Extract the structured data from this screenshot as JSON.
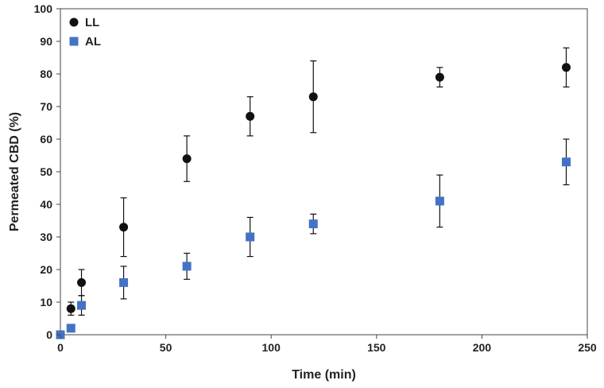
{
  "chart_data": {
    "type": "scatter",
    "title": "",
    "xlabel": "Time (min)",
    "ylabel": "Permeated CBD (%)",
    "xlim": [
      0,
      250
    ],
    "ylim": [
      0,
      100
    ],
    "xticks": [
      0,
      50,
      100,
      150,
      200,
      250
    ],
    "yticks": [
      0,
      10,
      20,
      30,
      40,
      50,
      60,
      70,
      80,
      90,
      100
    ],
    "grid": false,
    "legend_position": "top-left",
    "error_bars": true,
    "series": [
      {
        "name": "LL",
        "marker": "circle",
        "color": "#111111",
        "points": [
          {
            "x": 0,
            "y": 0,
            "err": 0
          },
          {
            "x": 5,
            "y": 8,
            "err": 2
          },
          {
            "x": 10,
            "y": 16,
            "err": 4
          },
          {
            "x": 30,
            "y": 33,
            "err": 9
          },
          {
            "x": 60,
            "y": 54,
            "err": 7
          },
          {
            "x": 90,
            "y": 67,
            "err": 6
          },
          {
            "x": 120,
            "y": 73,
            "err": 11
          },
          {
            "x": 180,
            "y": 79,
            "err": 3
          },
          {
            "x": 240,
            "y": 82,
            "err": 6
          }
        ]
      },
      {
        "name": "AL",
        "marker": "square",
        "color": "#4472C4",
        "points": [
          {
            "x": 0,
            "y": 0,
            "err": 0
          },
          {
            "x": 5,
            "y": 2,
            "err": 0
          },
          {
            "x": 10,
            "y": 9,
            "err": 3
          },
          {
            "x": 30,
            "y": 16,
            "err": 5
          },
          {
            "x": 60,
            "y": 21,
            "err": 4
          },
          {
            "x": 90,
            "y": 30,
            "err": 6
          },
          {
            "x": 120,
            "y": 34,
            "err": 3
          },
          {
            "x": 180,
            "y": 41,
            "err": 8
          },
          {
            "x": 240,
            "y": 53,
            "err": 7
          }
        ]
      }
    ]
  }
}
